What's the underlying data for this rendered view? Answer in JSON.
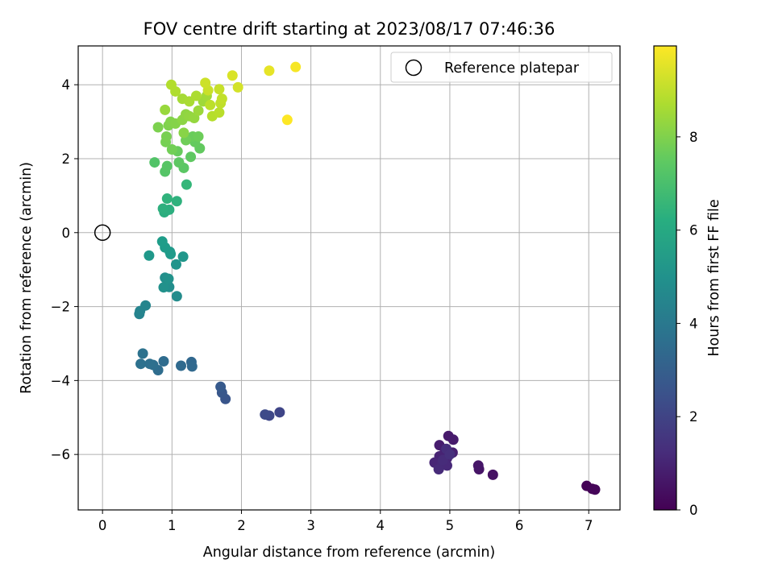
{
  "chart_data": {
    "type": "scatter",
    "title": "FOV centre drift starting at 2023/08/17 07:46:36",
    "xlabel": "Angular distance from reference (arcmin)",
    "ylabel": "Rotation from reference (arcmin)",
    "xlim": [
      -0.35,
      7.45
    ],
    "ylim": [
      -7.5,
      5.05
    ],
    "xticks": [
      0,
      1,
      2,
      3,
      4,
      5,
      6,
      7
    ],
    "yticks": [
      -6,
      -4,
      -2,
      0,
      2,
      4
    ],
    "grid": true,
    "legend": {
      "location": "top-right",
      "entries": [
        "Reference platepar"
      ]
    },
    "reference_point": {
      "x": 0,
      "y": 0,
      "label": "Reference platepar"
    },
    "colorbar": {
      "label": "Hours from first FF file",
      "colormap": "viridis",
      "range": [
        0,
        9.95
      ],
      "ticks": [
        0,
        2,
        4,
        6,
        8
      ]
    },
    "point_series_columns": [
      "x_arcmin",
      "y_arcmin",
      "hours"
    ],
    "points": [
      [
        6.97,
        -6.85,
        0.05
      ],
      [
        7.05,
        -6.93,
        0.1
      ],
      [
        7.09,
        -6.95,
        0.15
      ],
      [
        5.62,
        -6.55,
        0.45
      ],
      [
        5.42,
        -6.4,
        0.55
      ],
      [
        5.41,
        -6.3,
        0.6
      ],
      [
        4.98,
        -5.5,
        0.7
      ],
      [
        5.05,
        -5.6,
        0.75
      ],
      [
        4.85,
        -5.75,
        0.8
      ],
      [
        5.04,
        -5.95,
        0.85
      ],
      [
        4.93,
        -5.9,
        0.9
      ],
      [
        4.85,
        -6.05,
        0.95
      ],
      [
        4.96,
        -6.1,
        1.0
      ],
      [
        4.78,
        -6.22,
        1.05
      ],
      [
        4.89,
        -6.25,
        1.1
      ],
      [
        4.96,
        -6.3,
        1.15
      ],
      [
        4.84,
        -6.4,
        1.2
      ],
      [
        4.9,
        -6.15,
        1.25
      ],
      [
        4.95,
        -5.85,
        1.3
      ],
      [
        5.0,
        -6.0,
        1.35
      ],
      [
        2.55,
        -4.86,
        2.05
      ],
      [
        2.4,
        -4.95,
        2.15
      ],
      [
        2.34,
        -4.92,
        2.25
      ],
      [
        1.77,
        -4.5,
        2.6
      ],
      [
        1.72,
        -4.33,
        2.7
      ],
      [
        1.7,
        -4.17,
        2.8
      ],
      [
        1.28,
        -3.5,
        3.3
      ],
      [
        1.29,
        -3.62,
        3.35
      ],
      [
        1.13,
        -3.6,
        3.4
      ],
      [
        0.88,
        -3.48,
        3.5
      ],
      [
        0.8,
        -3.72,
        3.55
      ],
      [
        0.73,
        -3.58,
        3.6
      ],
      [
        0.68,
        -3.55,
        3.65
      ],
      [
        0.55,
        -3.55,
        3.7
      ],
      [
        0.58,
        -3.27,
        3.75
      ],
      [
        0.53,
        -2.2,
        4.45
      ],
      [
        0.54,
        -2.12,
        4.5
      ],
      [
        0.62,
        -1.97,
        4.55
      ],
      [
        1.07,
        -1.72,
        4.8
      ],
      [
        0.96,
        -1.47,
        4.9
      ],
      [
        0.9,
        -1.22,
        4.95
      ],
      [
        0.88,
        -1.48,
        5.0
      ],
      [
        0.95,
        -1.25,
        5.05
      ],
      [
        1.06,
        -0.86,
        5.15
      ],
      [
        1.16,
        -0.65,
        5.2
      ],
      [
        0.67,
        -0.62,
        5.3
      ],
      [
        0.97,
        -0.52,
        5.35
      ],
      [
        0.98,
        -0.58,
        5.4
      ],
      [
        0.9,
        -0.4,
        5.45
      ],
      [
        0.86,
        -0.24,
        5.5
      ],
      [
        0.89,
        0.55,
        6.2
      ],
      [
        0.96,
        0.62,
        6.25
      ],
      [
        0.87,
        0.65,
        6.3
      ],
      [
        1.07,
        0.85,
        6.35
      ],
      [
        0.93,
        0.92,
        6.4
      ],
      [
        1.21,
        1.3,
        6.6
      ],
      [
        0.75,
        1.9,
        7.2
      ],
      [
        0.9,
        1.65,
        7.25
      ],
      [
        0.93,
        1.8,
        7.3
      ],
      [
        1.17,
        1.75,
        7.35
      ],
      [
        1.1,
        1.9,
        7.4
      ],
      [
        1.27,
        2.05,
        7.45
      ],
      [
        1.4,
        2.28,
        7.5
      ],
      [
        1.33,
        2.45,
        7.55
      ],
      [
        1.08,
        2.2,
        7.6
      ],
      [
        1.3,
        2.6,
        7.65
      ],
      [
        1.38,
        2.6,
        7.7
      ],
      [
        1.2,
        2.5,
        7.75
      ],
      [
        1.0,
        2.25,
        7.8
      ],
      [
        0.91,
        2.45,
        7.85
      ],
      [
        0.92,
        2.6,
        7.9
      ],
      [
        0.8,
        2.85,
        7.95
      ],
      [
        0.95,
        2.9,
        8.0
      ],
      [
        0.98,
        3.0,
        8.05
      ],
      [
        1.05,
        2.95,
        8.1
      ],
      [
        1.17,
        2.7,
        8.15
      ],
      [
        1.15,
        3.05,
        8.2
      ],
      [
        1.2,
        3.2,
        8.25
      ],
      [
        1.25,
        3.15,
        8.3
      ],
      [
        1.32,
        3.1,
        8.35
      ],
      [
        0.9,
        3.32,
        8.4
      ],
      [
        1.38,
        3.3,
        8.45
      ],
      [
        1.45,
        3.55,
        8.5
      ],
      [
        1.5,
        3.7,
        8.55
      ],
      [
        1.15,
        3.62,
        8.6
      ],
      [
        1.25,
        3.55,
        8.65
      ],
      [
        1.35,
        3.7,
        8.7
      ],
      [
        1.05,
        3.82,
        8.75
      ],
      [
        0.99,
        4.0,
        8.8
      ],
      [
        1.58,
        3.15,
        8.85
      ],
      [
        1.68,
        3.25,
        8.9
      ],
      [
        1.55,
        3.45,
        8.95
      ],
      [
        1.7,
        3.5,
        9.0
      ],
      [
        1.72,
        3.62,
        9.05
      ],
      [
        1.68,
        3.88,
        9.1
      ],
      [
        1.52,
        3.85,
        9.15
      ],
      [
        1.48,
        4.05,
        9.2
      ],
      [
        1.95,
        3.93,
        9.3
      ],
      [
        1.87,
        4.25,
        9.4
      ],
      [
        2.4,
        4.38,
        9.6
      ],
      [
        2.78,
        4.48,
        9.85
      ],
      [
        2.66,
        3.05,
        9.95
      ]
    ]
  }
}
